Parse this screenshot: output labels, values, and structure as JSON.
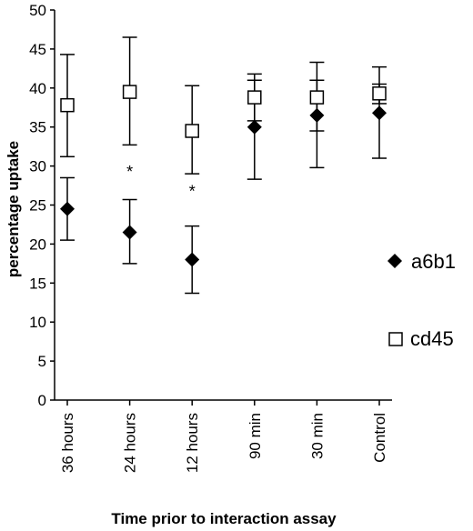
{
  "chart_data": {
    "type": "scatter",
    "xlabel": "Time prior to interaction assay",
    "ylabel": "percentage uptake",
    "ylim": [
      0,
      50
    ],
    "yticks": [
      0,
      5,
      10,
      15,
      20,
      25,
      30,
      35,
      40,
      45,
      50
    ],
    "categories": [
      "36 hours",
      "24 hours",
      "12 hours",
      "90 min",
      "30 min",
      "Control"
    ],
    "grid": false,
    "legend_position": "right",
    "series": [
      {
        "name": "a6b1",
        "marker": "filled-diamond",
        "color": "#000000",
        "values": [
          24.5,
          21.5,
          18.0,
          35.0,
          36.5,
          36.8
        ],
        "error_low": [
          20.5,
          17.5,
          13.7,
          28.3,
          29.8,
          31.0
        ],
        "error_high": [
          28.5,
          25.7,
          22.3,
          41.0,
          41.0,
          40.5
        ]
      },
      {
        "name": "cd45",
        "marker": "open-square",
        "color": "#000000",
        "values": [
          37.8,
          39.5,
          34.5,
          38.8,
          38.8,
          39.3
        ],
        "error_low": [
          31.2,
          32.7,
          29.0,
          35.8,
          34.5,
          38.0
        ],
        "error_high": [
          44.3,
          46.5,
          40.3,
          41.8,
          43.3,
          42.7
        ]
      }
    ],
    "annotations": [
      {
        "text": "*",
        "category_index": 1,
        "y": 29.5
      },
      {
        "text": "*",
        "category_index": 2,
        "y": 27.0
      }
    ]
  }
}
